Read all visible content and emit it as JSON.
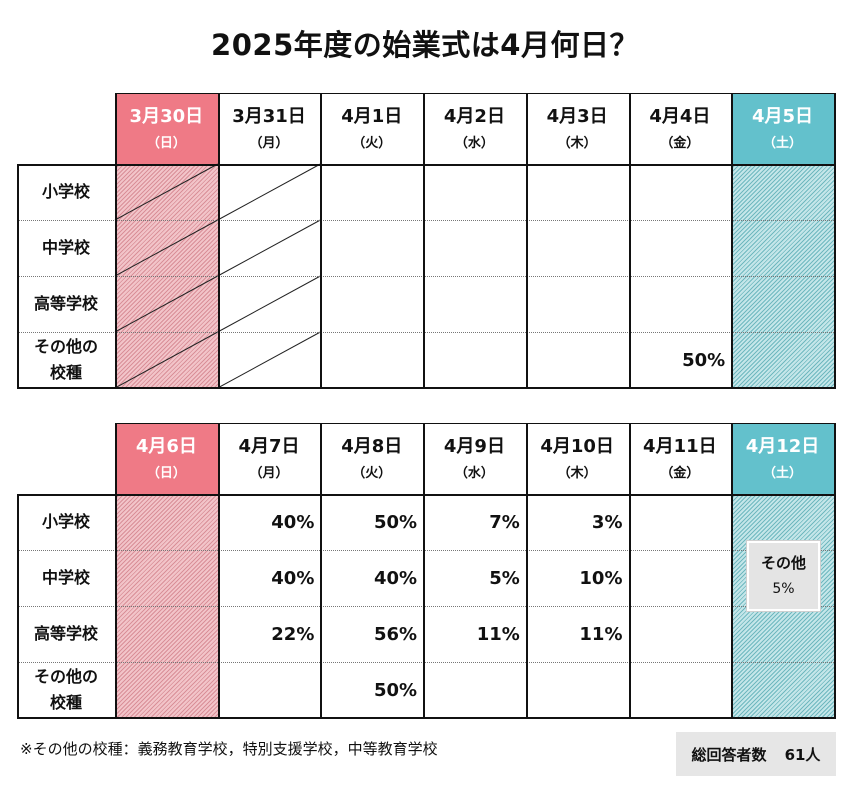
{
  "title": "2025年度の始業式は4月何日？",
  "chart_data": {
    "type": "table",
    "rows": [
      "小学校",
      "中学校",
      "高等学校",
      "その他の校種"
    ],
    "row_label_lines": [
      [
        "小学校"
      ],
      [
        "中学校"
      ],
      [
        "高等学校"
      ],
      [
        "その他の",
        "校種"
      ]
    ],
    "weeks": [
      {
        "days": [
          {
            "date": "3月30日",
            "dow": "（日）",
            "kind": "sun"
          },
          {
            "date": "3月31日",
            "dow": "（月）",
            "kind": "weekday"
          },
          {
            "date": "4月1日",
            "dow": "（火）",
            "kind": "weekday"
          },
          {
            "date": "4月2日",
            "dow": "（水）",
            "kind": "weekday"
          },
          {
            "date": "4月3日",
            "dow": "（木）",
            "kind": "weekday"
          },
          {
            "date": "4月4日",
            "dow": "（金）",
            "kind": "weekday"
          },
          {
            "date": "4月5日",
            "dow": "（土）",
            "kind": "sat"
          }
        ],
        "values": [
          [
            "",
            "",
            "",
            "",
            "",
            "",
            ""
          ],
          [
            "",
            "",
            "",
            "",
            "",
            "",
            ""
          ],
          [
            "",
            "",
            "",
            "",
            "",
            "",
            ""
          ],
          [
            "",
            "",
            "",
            "",
            "",
            "50%",
            ""
          ]
        ],
        "struck_columns": [
          0,
          1
        ]
      },
      {
        "days": [
          {
            "date": "4月6日",
            "dow": "（日）",
            "kind": "sun"
          },
          {
            "date": "4月7日",
            "dow": "（月）",
            "kind": "weekday"
          },
          {
            "date": "4月8日",
            "dow": "（火）",
            "kind": "weekday"
          },
          {
            "date": "4月9日",
            "dow": "（水）",
            "kind": "weekday"
          },
          {
            "date": "4月10日",
            "dow": "（木）",
            "kind": "weekday"
          },
          {
            "date": "4月11日",
            "dow": "（金）",
            "kind": "weekday"
          },
          {
            "date": "4月12日",
            "dow": "（土）",
            "kind": "sat"
          }
        ],
        "values": [
          [
            "",
            "40%",
            "50%",
            "7%",
            "3%",
            "",
            ""
          ],
          [
            "",
            "40%",
            "40%",
            "5%",
            "10%",
            "",
            ""
          ],
          [
            "",
            "22%",
            "56%",
            "11%",
            "11%",
            "",
            ""
          ],
          [
            "",
            "",
            "50%",
            "",
            "",
            "",
            ""
          ]
        ],
        "struck_columns": []
      }
    ],
    "saturday_note": {
      "label": "その他",
      "value": "5%"
    },
    "colors": {
      "sunday": "#ef7a86",
      "saturday": "#63c1cc"
    }
  },
  "footnote": "※その他の校種：義務教育学校，特別支援学校，中等教育学校",
  "total": {
    "label": "総回答者数",
    "value": "61人"
  }
}
